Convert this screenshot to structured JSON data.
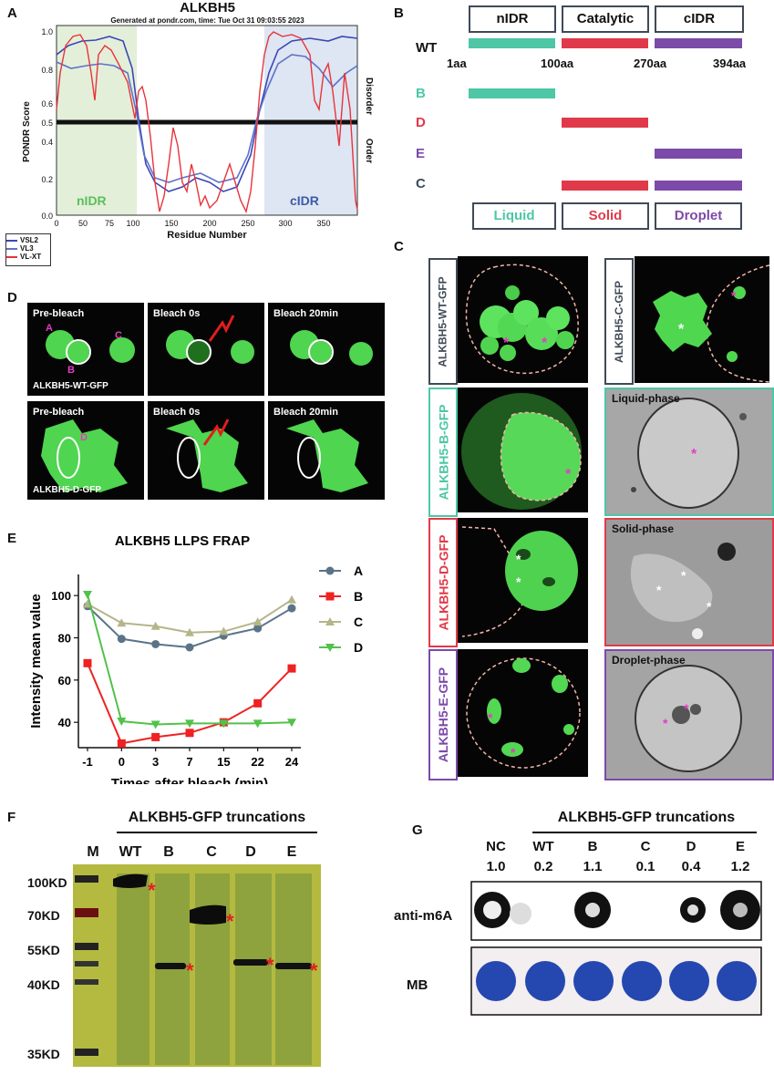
{
  "panel_a": {
    "letter": "A",
    "title": "ALKBH5",
    "subtitle": "Generated at pondr.com, time: Tue Oct 31 09:03:55 2023",
    "ylabel": "PONDR Score",
    "xlabel": "Residue Number",
    "right_top": "Disorder",
    "right_bottom": "Order",
    "region_left": "nIDR",
    "region_right": "cIDR",
    "legend": [
      "VSL2",
      "VL3",
      "VL-XT"
    ],
    "colors": {
      "VSL2": "#3a47b5",
      "VL3": "#5d72c9",
      "VL-XT": "#e8343c"
    }
  },
  "panel_b": {
    "letter": "B",
    "domains": [
      "nIDR",
      "Catalytic",
      "cIDR"
    ],
    "wt_label": "WT",
    "positions": [
      "1aa",
      "100aa",
      "270aa",
      "394aa"
    ],
    "rows": [
      {
        "label": "B",
        "color": "#4dc7a6"
      },
      {
        "label": "D",
        "color": "#e03a4a"
      },
      {
        "label": "E",
        "color": "#7c4aa8"
      },
      {
        "label": "C",
        "color": "#3b4d5c"
      }
    ],
    "phases": [
      {
        "label": "Liquid",
        "color": "#4dc7a6"
      },
      {
        "label": "Solid",
        "color": "#e03a4a"
      },
      {
        "label": "Droplet",
        "color": "#7c4aa8"
      }
    ]
  },
  "panel_c": {
    "letter": "C",
    "labels": [
      "ALKBH5-WT-GFP",
      "ALKBH5-C-GFP",
      "ALKBH5-B-GFP",
      "ALKBH5-D-GFP",
      "ALKBH5-E-GFP"
    ],
    "em_labels": [
      "Liquid-phase",
      "Solid-phase",
      "Droplet-phase"
    ],
    "star": "*"
  },
  "panel_d": {
    "letter": "D",
    "row1": [
      "Pre-bleach",
      "Bleach 0s",
      "Bleach 20min"
    ],
    "row2": [
      "Pre-bleach",
      "Bleach 0s",
      "Bleach 20min"
    ],
    "row1_name": "ALKBH5-WT-GFP",
    "row2_name": "ALKBH5-D-GFP",
    "drop_a": "A",
    "drop_b": "B",
    "drop_c": "C",
    "drop_d": "D"
  },
  "panel_e": {
    "letter": "E"
  },
  "chart_data": {
    "type": "line",
    "title": "ALKBH5 LLPS FRAP",
    "xlabel": "Times after bleach  (min)",
    "ylabel": "Intensity mean value",
    "categories": [
      "-1",
      "0",
      "3",
      "7",
      "15",
      "22",
      "24"
    ],
    "yticks": [
      40,
      60,
      80,
      100
    ],
    "ylim": [
      28,
      110
    ],
    "series": [
      {
        "name": "A",
        "color": "#5a7389",
        "marker": "circle",
        "values": [
          95,
          79.5,
          77,
          75.5,
          81,
          84.5,
          94
        ]
      },
      {
        "name": "B",
        "color": "#ee2222",
        "marker": "square",
        "values": [
          68,
          30,
          33,
          35,
          40,
          49,
          65.5
        ]
      },
      {
        "name": "C",
        "color": "#b5b58a",
        "marker": "triangle",
        "values": [
          96,
          87,
          85.5,
          82.5,
          83,
          87.5,
          98
        ]
      },
      {
        "name": "D",
        "color": "#52c24a",
        "marker": "tri-down",
        "values": [
          100.5,
          40.5,
          39,
          39.5,
          39.5,
          39.5,
          40
        ]
      }
    ]
  },
  "panel_f": {
    "letter": "F",
    "header": "ALKBH5-GFP  truncations",
    "lanes": [
      "M",
      "WT",
      "B",
      "C",
      "D",
      "E"
    ],
    "markers": [
      "100KD",
      "70KD",
      "55KD",
      "40KD",
      "35KD"
    ]
  },
  "panel_g": {
    "letter": "G",
    "header": "ALKBH5-GFP truncations",
    "samples": [
      "NC",
      "WT",
      "B",
      "C",
      "D",
      "E"
    ],
    "values": [
      "1.0",
      "0.2",
      "1.1",
      "0.1",
      "0.4",
      "1.2"
    ],
    "row1": "anti-m6A",
    "row2": "MB"
  }
}
